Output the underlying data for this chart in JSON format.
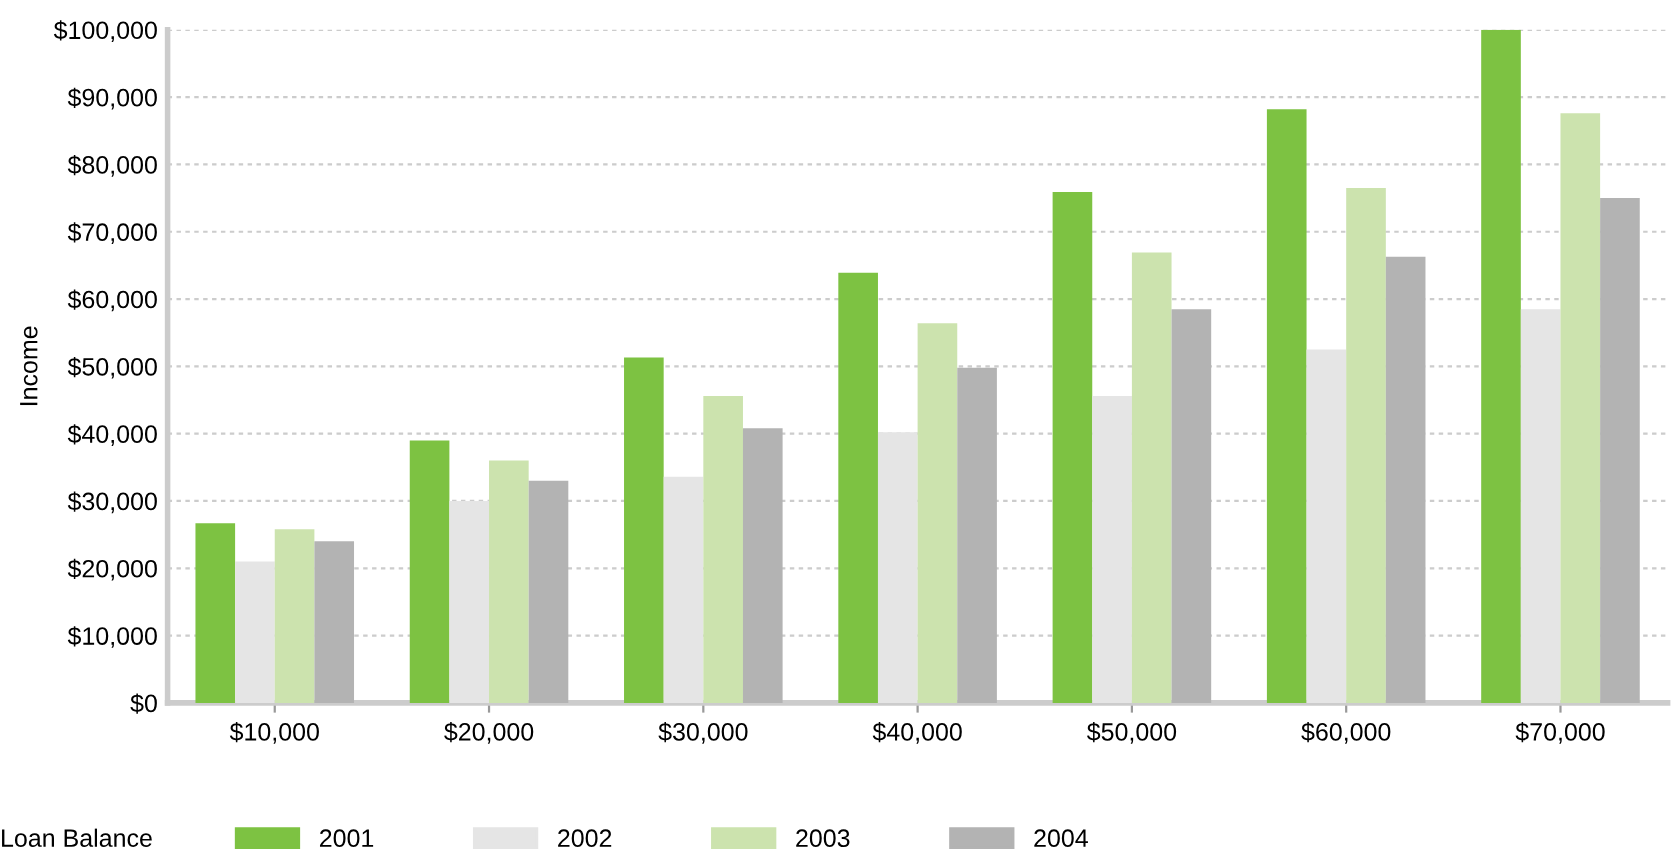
{
  "chart_data": {
    "type": "bar",
    "ylabel": "Income",
    "legend_title": "Loan Balance",
    "categories": [
      "$10,000",
      "$20,000",
      "$30,000",
      "$40,000",
      "$50,000",
      "$60,000",
      "$70,000"
    ],
    "series": [
      {
        "name": "2001",
        "color": "#7dc242",
        "values": [
          26700,
          39000,
          51300,
          63900,
          75900,
          88200,
          100000
        ]
      },
      {
        "name": "2002",
        "color": "#e5e5e5",
        "values": [
          21000,
          30000,
          33600,
          40200,
          45600,
          52500,
          58500
        ]
      },
      {
        "name": "2003",
        "color": "#cce3ae",
        "values": [
          25800,
          36000,
          45600,
          56400,
          66900,
          76500,
          87600
        ]
      },
      {
        "name": "2004",
        "color": "#b3b3b3",
        "values": [
          24000,
          33000,
          40800,
          49800,
          58500,
          66300,
          75000
        ]
      }
    ],
    "ylim": [
      0,
      100000
    ],
    "yticks": [
      {
        "value": 0,
        "label": "$0"
      },
      {
        "value": 10000,
        "label": "$10,000"
      },
      {
        "value": 20000,
        "label": "$20,000"
      },
      {
        "value": 30000,
        "label": "$30,000"
      },
      {
        "value": 40000,
        "label": "$40,000"
      },
      {
        "value": 50000,
        "label": "$50,000"
      },
      {
        "value": 60000,
        "label": "$60,000"
      },
      {
        "value": 70000,
        "label": "$70,000"
      },
      {
        "value": 80000,
        "label": "$80,000"
      },
      {
        "value": 90000,
        "label": "$90,000"
      },
      {
        "value": 100000,
        "label": "$100,000"
      }
    ],
    "grid": "y",
    "legend": "bottom"
  }
}
